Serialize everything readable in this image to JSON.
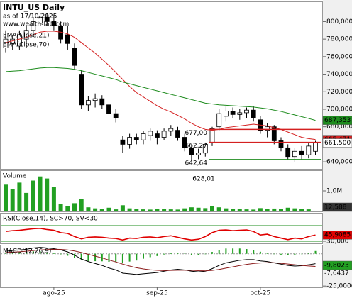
{
  "chart_data": [
    {
      "type": "candlestick",
      "title": "INTU_US Daily",
      "subtitle": "as of 17/10/2025",
      "source": "www.wealth-lab.com",
      "categories": [
        null,
        null,
        null,
        null,
        null,
        null,
        null,
        "ago-25",
        null,
        null,
        null,
        null,
        null,
        null,
        null,
        null,
        null,
        null,
        null,
        null,
        null,
        null,
        "sep-25",
        null,
        null,
        null,
        null,
        null,
        null,
        null,
        null,
        null,
        null,
        null,
        null,
        null,
        null,
        "oct-25",
        null,
        null,
        null,
        null,
        null,
        null,
        null,
        null
      ],
      "open": [
        770,
        775,
        772,
        780,
        790,
        798,
        805,
        800,
        795,
        785,
        770,
        740,
        705,
        710,
        712,
        705,
        695,
        665,
        660,
        668,
        665,
        670,
        672,
        668,
        675,
        676,
        668,
        656,
        648,
        650,
        662,
        680,
        692,
        698,
        694,
        696,
        699,
        688,
        676,
        680,
        664,
        656,
        646,
        652,
        648,
        652
      ],
      "high": [
        790,
        785,
        790,
        795,
        805,
        810,
        810,
        808,
        800,
        795,
        775,
        745,
        715,
        718,
        716,
        712,
        700,
        670,
        672,
        672,
        675,
        678,
        676,
        678,
        682,
        680,
        672,
        660,
        655,
        662,
        680,
        700,
        703,
        702,
        700,
        702,
        704,
        692,
        684,
        682,
        668,
        660,
        656,
        658,
        662,
        664
      ],
      "low": [
        765,
        768,
        768,
        770,
        785,
        792,
        795,
        790,
        775,
        768,
        745,
        700,
        698,
        702,
        700,
        690,
        685,
        650,
        655,
        660,
        660,
        664,
        660,
        665,
        670,
        664,
        652,
        642,
        643,
        646,
        658,
        676,
        686,
        690,
        688,
        690,
        686,
        672,
        668,
        660,
        652,
        642,
        640,
        642,
        644,
        648
      ],
      "close": [
        780,
        780,
        785,
        790,
        800,
        805,
        800,
        795,
        780,
        775,
        750,
        705,
        710,
        712,
        705,
        695,
        690,
        660,
        668,
        665,
        672,
        675,
        668,
        675,
        678,
        668,
        656,
        648,
        650,
        660,
        678,
        695,
        698,
        694,
        696,
        699,
        690,
        676,
        680,
        664,
        656,
        646,
        652,
        648,
        658,
        661.5
      ],
      "close_label": "661,500",
      "ylim": [
        632,
        823
      ],
      "yticks": [
        {
          "value": 640,
          "label": "640,000"
        },
        {
          "value": 660,
          "label": "660,000"
        },
        {
          "value": 680,
          "label": "680,000"
        },
        {
          "value": 700,
          "label": "700,000"
        },
        {
          "value": 720,
          "label": "720,000"
        },
        {
          "value": 740,
          "label": "740,000"
        },
        {
          "value": 760,
          "label": "760,000"
        },
        {
          "value": 780,
          "label": "780,000"
        },
        {
          "value": 800,
          "label": "800,000"
        }
      ],
      "series": [
        {
          "name": "EMA(Close,21)",
          "color": "#d42020",
          "last_label": "665,471",
          "values": [
            776,
            778,
            780,
            782,
            785,
            788,
            789,
            789,
            788,
            786,
            782,
            776,
            770,
            764,
            757,
            750,
            742,
            734,
            726,
            719,
            714,
            709,
            704,
            700,
            697,
            693,
            689,
            684,
            680,
            677,
            676,
            677,
            679,
            680,
            681,
            682,
            683,
            682,
            681,
            679,
            677,
            674,
            671,
            668,
            666.5,
            665.471
          ]
        },
        {
          "name": "EMA(Close,70)",
          "color": "#1e8c1e",
          "last_label": "687,353",
          "values": [
            743,
            743.5,
            744,
            745,
            746,
            747,
            747.5,
            747.5,
            747,
            746.5,
            745.5,
            744,
            742,
            740,
            738,
            736,
            734,
            731,
            729,
            727,
            725,
            723,
            721,
            719,
            717,
            715,
            713,
            711,
            709,
            707,
            706,
            705,
            704.5,
            704,
            703.5,
            703,
            702.5,
            701.5,
            700.5,
            699,
            697.5,
            695.5,
            693.5,
            691.5,
            689.5,
            687.353
          ]
        }
      ],
      "levels": [
        {
          "value": 677,
          "label": "677,00",
          "color": "#d42020"
        },
        {
          "value": 662.27,
          "label": "662,27",
          "color": "#d42020"
        },
        {
          "value": 642.64,
          "label": "642,64",
          "color": "#1e8c1e"
        }
      ]
    },
    {
      "type": "bar",
      "title": "Volume",
      "color": "#22a022",
      "ylim": [
        0,
        2000000
      ],
      "yticks": [
        {
          "value": 1000000,
          "label": "1,0M"
        }
      ],
      "last_label": "12,588",
      "annotation": "628,01",
      "values": [
        1300000,
        1100000,
        1400000,
        900000,
        1500000,
        1700000,
        1600000,
        1200000,
        350000,
        250000,
        400000,
        600000,
        200000,
        150000,
        120000,
        180000,
        100000,
        300000,
        150000,
        120000,
        100000,
        90000,
        110000,
        130000,
        100000,
        90000,
        150000,
        200000,
        180000,
        160000,
        250000,
        200000,
        150000,
        120000,
        110000,
        100000,
        90000,
        160000,
        120000,
        140000,
        130000,
        180000,
        150000,
        110000,
        100000,
        12588
      ]
    },
    {
      "type": "line",
      "title": "RSI(Close,14), SC>70, SV<30",
      "ylim": [
        24.5,
        102.7
      ],
      "yticks": [
        {
          "value": 30,
          "label": "30,000"
        }
      ],
      "levels": [
        70,
        30
      ],
      "level_color": "#1e8c1e",
      "series": [
        {
          "color": "#e00000",
          "last_label": "45,9085",
          "values": [
            55,
            57,
            58,
            60,
            62,
            63,
            60,
            58,
            52,
            50,
            42,
            36,
            40,
            41,
            40,
            38,
            37,
            33,
            38,
            37,
            40,
            41,
            39,
            42,
            44,
            40,
            36,
            33,
            35,
            42,
            52,
            58,
            59,
            57,
            58,
            59,
            55,
            46,
            48,
            42,
            38,
            34,
            38,
            36,
            42,
            45.9085
          ]
        }
      ]
    },
    {
      "type": "macd",
      "title": "MACD(12,26,9)",
      "ylim": [
        -26,
        7
      ],
      "yticks": [
        {
          "value": -25,
          "label": "-25,0000"
        }
      ],
      "histogram": {
        "color": "#22a022",
        "values": [
          1,
          1.2,
          1.4,
          1.5,
          2,
          2,
          1.2,
          0.5,
          -0.4,
          -1.5,
          -3.2,
          -5,
          -5.6,
          -5.7,
          -5.8,
          -6.2,
          -6.2,
          -7,
          -6,
          -5.2,
          -3.8,
          -2.6,
          -1.7,
          -0.5,
          0.4,
          0.7,
          0.2,
          -0.7,
          -0.9,
          -0.3,
          1.4,
          3.1,
          4.1,
          4.1,
          4.1,
          3.7,
          3,
          1.6,
          0.9,
          -0.1,
          -0.6,
          -1.1,
          -1,
          -0.2,
          0.9,
          2.1586
        ]
      },
      "series": [
        {
          "color": "#000000",
          "last_label": "-7,6437",
          "values": [
            2,
            2.5,
            3,
            3.5,
            4.5,
            5,
            4.5,
            4,
            3,
            1.5,
            -1,
            -4,
            -6,
            -7.5,
            -9,
            -11,
            -12.5,
            -15,
            -15.5,
            -16,
            -15.5,
            -15,
            -14.5,
            -13.5,
            -12.5,
            -12,
            -12.5,
            -13.5,
            -14,
            -13.5,
            -11.5,
            -9,
            -7,
            -6,
            -5,
            -4.5,
            -4.5,
            -5.5,
            -6,
            -7,
            -8,
            -9,
            -9.5,
            -9.2,
            -8.5,
            -7.6437
          ]
        },
        {
          "color": "#8b1a1a",
          "last_label": "-9,8023",
          "values": [
            1,
            1.3,
            1.6,
            2,
            2.5,
            3,
            3.3,
            3.5,
            3.4,
            3,
            2.2,
            1,
            -0.4,
            -1.8,
            -3.2,
            -4.8,
            -6.3,
            -8,
            -9.5,
            -10.8,
            -11.7,
            -12.4,
            -12.8,
            -13,
            -12.9,
            -12.7,
            -12.7,
            -12.8,
            -13.1,
            -13.2,
            -12.9,
            -12.1,
            -11.1,
            -10.1,
            -9.1,
            -8.2,
            -7.5,
            -7.1,
            -6.9,
            -6.9,
            -7.4,
            -7.9,
            -8.5,
            -9,
            -9.4,
            -9.8023
          ]
        }
      ]
    }
  ]
}
